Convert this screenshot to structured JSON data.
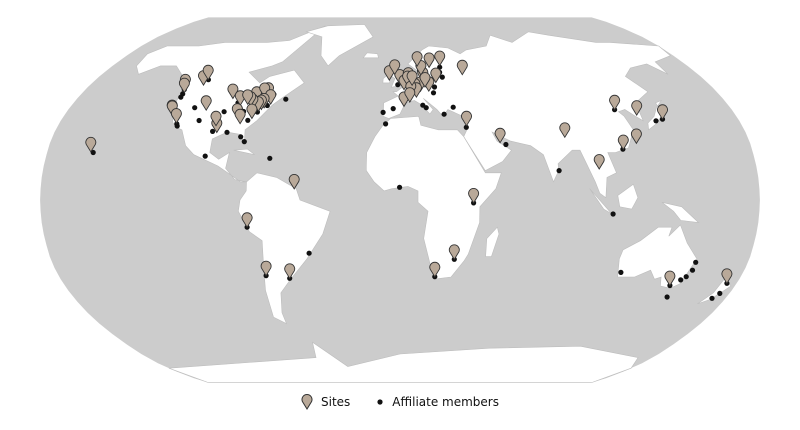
{
  "map": {
    "projection": "Robinson",
    "colors": {
      "ocean": "#cccccc",
      "land": "#ffffff",
      "border": "#bdbdbd",
      "site_pin": "#b9a999",
      "affiliate_dot": "#111111"
    },
    "sites": [
      [
        21.3,
        -157.8
      ],
      [
        49.3,
        -123.1
      ],
      [
        47.6,
        -122.3
      ],
      [
        51.0,
        -114.1
      ],
      [
        53.5,
        -113.5
      ],
      [
        44.9,
        -93.2
      ],
      [
        43.7,
        -79.4
      ],
      [
        45.5,
        -73.6
      ],
      [
        45.4,
        -75.7
      ],
      [
        42.4,
        -71.1
      ],
      [
        40.7,
        -74.0
      ],
      [
        40.0,
        -75.2
      ],
      [
        39.3,
        -76.6
      ],
      [
        40.4,
        -80.0
      ],
      [
        41.5,
        -81.7
      ],
      [
        41.9,
        -87.6
      ],
      [
        42.3,
        -83.7
      ],
      [
        39.7,
        -105.0
      ],
      [
        37.8,
        -122.4
      ],
      [
        37.4,
        -122.1
      ],
      [
        29.8,
        -95.4
      ],
      [
        36.2,
        -86.8
      ],
      [
        33.7,
        -84.4
      ],
      [
        36.0,
        -78.9
      ],
      [
        32.8,
        -96.8
      ],
      [
        34.0,
        -118.2
      ],
      [
        4.9,
        -53.0
      ],
      [
        -12.0,
        -77.0
      ],
      [
        -33.4,
        -70.6
      ],
      [
        -34.6,
        -58.4
      ],
      [
        51.5,
        -0.1
      ],
      [
        48.9,
        2.3
      ],
      [
        52.4,
        4.9
      ],
      [
        50.8,
        4.4
      ],
      [
        52.5,
        13.4
      ],
      [
        55.7,
        12.6
      ],
      [
        59.3,
        18.1
      ],
      [
        59.9,
        10.7
      ],
      [
        60.2,
        24.9
      ],
      [
        48.1,
        11.6
      ],
      [
        47.4,
        8.5
      ],
      [
        45.5,
        9.2
      ],
      [
        41.4,
        2.2
      ],
      [
        48.2,
        16.4
      ],
      [
        50.1,
        14.4
      ],
      [
        52.2,
        21.0
      ],
      [
        55.8,
        37.6
      ],
      [
        53.3,
        -6.3
      ],
      [
        56.0,
        -3.2
      ],
      [
        46.2,
        6.1
      ],
      [
        50.9,
        7.0
      ],
      [
        43.3,
        5.4
      ],
      [
        32.8,
        35.0
      ],
      [
        25.3,
        51.5
      ],
      [
        27.7,
        85.3
      ],
      [
        -1.3,
        36.8
      ],
      [
        -26.2,
        28.0
      ],
      [
        -33.9,
        18.4
      ],
      [
        13.7,
        100.5
      ],
      [
        22.3,
        114.2
      ],
      [
        25.0,
        121.5
      ],
      [
        39.9,
        116.4
      ],
      [
        35.7,
        139.7
      ],
      [
        37.5,
        127.0
      ],
      [
        -37.8,
        145.0
      ],
      [
        -36.8,
        174.8
      ]
    ],
    "affiliates": [
      [
        21.0,
        -156.5
      ],
      [
        49.0,
        -123.5
      ],
      [
        47.0,
        -122.8
      ],
      [
        45.5,
        -122.7
      ],
      [
        38.5,
        -121.5
      ],
      [
        33.6,
        -117.8
      ],
      [
        32.7,
        -117.2
      ],
      [
        40.8,
        -111.9
      ],
      [
        39.0,
        -95.0
      ],
      [
        39.1,
        -84.5
      ],
      [
        43.0,
        -89.4
      ],
      [
        42.9,
        -78.9
      ],
      [
        44.6,
        -63.6
      ],
      [
        41.8,
        -72.7
      ],
      [
        35.2,
        -80.8
      ],
      [
        38.9,
        -77.0
      ],
      [
        30.3,
        -97.7
      ],
      [
        29.9,
        -90.1
      ],
      [
        27.9,
        -82.5
      ],
      [
        25.8,
        -80.2
      ],
      [
        19.4,
        -99.1
      ],
      [
        18.4,
        -66.1
      ],
      [
        49.9,
        -97.1
      ],
      [
        53.5,
        -113.4
      ],
      [
        46.8,
        -71.2
      ],
      [
        40.4,
        -86.9
      ],
      [
        35.1,
        -106.6
      ],
      [
        -23.5,
        -46.6
      ],
      [
        -33.4,
        -70.6
      ],
      [
        -34.6,
        -58.4
      ],
      [
        -12.0,
        -77.0
      ],
      [
        5.6,
        -0.2
      ],
      [
        33.6,
        -7.6
      ],
      [
        38.7,
        -9.1
      ],
      [
        40.4,
        -3.7
      ],
      [
        41.9,
        12.5
      ],
      [
        40.8,
        14.3
      ],
      [
        37.9,
        23.7
      ],
      [
        41.0,
        29.0
      ],
      [
        47.5,
        19.0
      ],
      [
        50.1,
        19.9
      ],
      [
        54.7,
        25.3
      ],
      [
        56.9,
        24.1
      ],
      [
        59.4,
        24.7
      ],
      [
        57.7,
        12.0
      ],
      [
        63.4,
        10.4
      ],
      [
        51.2,
        -1.3
      ],
      [
        -33.9,
        18.4
      ],
      [
        -26.2,
        28.0
      ],
      [
        -1.3,
        36.8
      ],
      [
        13.0,
        80.2
      ],
      [
        32.1,
        34.8
      ],
      [
        24.5,
        54.4
      ],
      [
        -6.2,
        106.8
      ],
      [
        22.5,
        114.0
      ],
      [
        39.9,
        116.4
      ],
      [
        35.0,
        135.8
      ],
      [
        35.7,
        139.7
      ],
      [
        -32.0,
        115.9
      ],
      [
        -27.5,
        153.0
      ],
      [
        -33.9,
        151.2
      ],
      [
        -31.0,
        152.9
      ],
      [
        -35.3,
        149.1
      ],
      [
        -37.8,
        145.0
      ],
      [
        -42.9,
        147.3
      ],
      [
        -43.5,
        172.6
      ],
      [
        -41.3,
        174.8
      ],
      [
        -36.8,
        174.8
      ]
    ]
  },
  "legend": {
    "sites_label": "Sites",
    "affiliates_label": "Affiliate members"
  }
}
